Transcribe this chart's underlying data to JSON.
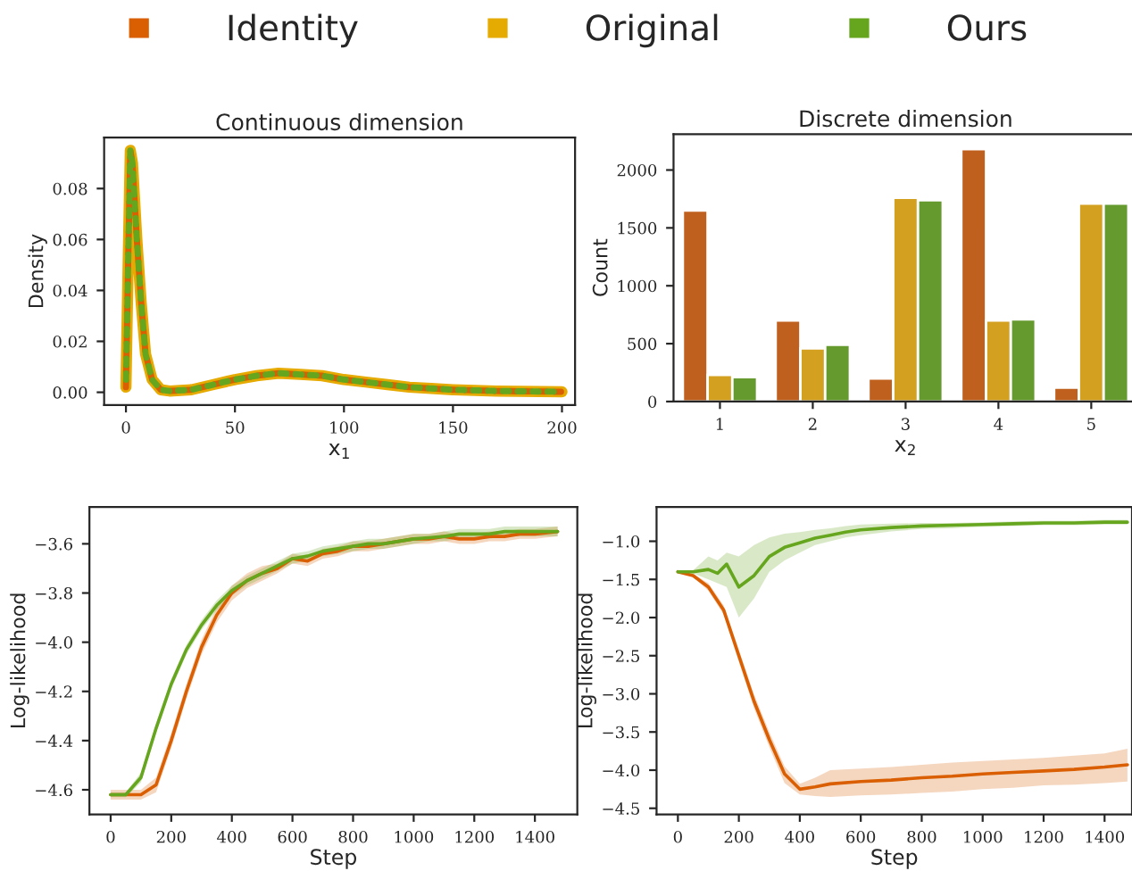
{
  "chart_data": [
    {
      "type": "line",
      "title": "Continuous dimension",
      "xlabel": "x$_{1}$",
      "ylabel": "Density",
      "legend": "top",
      "grid": false,
      "x": [
        0,
        1,
        2,
        3,
        5,
        7,
        9,
        12,
        16,
        20,
        30,
        40,
        50,
        60,
        70,
        80,
        90,
        100,
        110,
        120,
        130,
        140,
        150,
        170,
        200
      ],
      "xlim": [
        -10,
        206
      ],
      "ylim": [
        -0.005,
        0.1
      ],
      "xticks": [
        0,
        50,
        100,
        150,
        200
      ],
      "yticks": [
        {
          "value": 0,
          "label": "0.00"
        },
        {
          "value": 0.02,
          "label": "0.02"
        },
        {
          "value": 0.04,
          "label": "0.04"
        },
        {
          "value": 0.06,
          "label": "0.06"
        },
        {
          "value": 0.08,
          "label": "0.08"
        }
      ],
      "series": [
        {
          "name": "Identity",
          "color": "#d95f02",
          "line_style": "dashed",
          "values": [
            0.002,
            0.05,
            0.095,
            0.09,
            0.06,
            0.035,
            0.015,
            0.005,
            0.001,
            0.0005,
            0.001,
            0.003,
            0.005,
            0.0065,
            0.0075,
            0.007,
            0.0065,
            0.005,
            0.004,
            0.003,
            0.002,
            0.0015,
            0.001,
            0.0005,
            0.0002
          ]
        },
        {
          "name": "Original",
          "color": "#e6ab02",
          "line_style": "solid",
          "values": [
            0.002,
            0.05,
            0.095,
            0.09,
            0.06,
            0.035,
            0.015,
            0.005,
            0.001,
            0.0005,
            0.001,
            0.003,
            0.005,
            0.0065,
            0.0075,
            0.007,
            0.0065,
            0.005,
            0.004,
            0.003,
            0.002,
            0.0015,
            0.001,
            0.0005,
            0.0002
          ]
        },
        {
          "name": "Ours",
          "color": "#66a61e",
          "line_style": "dashed",
          "values": [
            0.002,
            0.05,
            0.095,
            0.09,
            0.06,
            0.035,
            0.015,
            0.005,
            0.001,
            0.0005,
            0.001,
            0.003,
            0.005,
            0.0065,
            0.0075,
            0.007,
            0.0065,
            0.005,
            0.004,
            0.003,
            0.002,
            0.0015,
            0.001,
            0.0005,
            0.0002
          ]
        }
      ]
    },
    {
      "type": "bar",
      "title": "Discrete dimension",
      "xlabel": "x$_{2}$",
      "ylabel": "Count",
      "grid": false,
      "categories": [
        "1",
        "2",
        "3",
        "4",
        "5"
      ],
      "ylim": [
        0,
        2310
      ],
      "yticks": [
        0,
        500,
        1000,
        1500,
        2000
      ],
      "series": [
        {
          "color": "#c0601f",
          "values": [
            1650,
            700,
            200,
            2180,
            120
          ]
        },
        {
          "color": "#d4a020",
          "values": [
            230,
            460,
            1760,
            700,
            1710
          ]
        },
        {
          "color": "#659a2e",
          "values": [
            210,
            490,
            1740,
            710,
            1710
          ]
        }
      ]
    },
    {
      "type": "line",
      "xlabel": "Step",
      "ylabel": "Log-likelihood",
      "grid": false,
      "x": [
        0,
        50,
        100,
        150,
        200,
        250,
        300,
        350,
        400,
        450,
        500,
        550,
        600,
        650,
        700,
        750,
        800,
        850,
        900,
        950,
        1000,
        1050,
        1100,
        1150,
        1200,
        1250,
        1300,
        1350,
        1400,
        1475
      ],
      "xlim": [
        -70,
        1540
      ],
      "ylim": [
        -4.7,
        -3.45
      ],
      "xticks": [
        0,
        200,
        400,
        600,
        800,
        1000,
        1200,
        1400
      ],
      "yticks": [
        {
          "value": -4.6,
          "label": "−4.6"
        },
        {
          "value": -4.4,
          "label": "−4.4"
        },
        {
          "value": -4.2,
          "label": "−4.2"
        },
        {
          "value": -4.0,
          "label": "−4.0"
        },
        {
          "value": -3.8,
          "label": "−3.8"
        },
        {
          "value": -3.6,
          "label": "−3.6"
        }
      ],
      "series": [
        {
          "color": "#d95f02",
          "values": [
            -4.62,
            -4.62,
            -4.62,
            -4.58,
            -4.4,
            -4.2,
            -4.02,
            -3.89,
            -3.8,
            -3.75,
            -3.72,
            -3.7,
            -3.66,
            -3.67,
            -3.64,
            -3.63,
            -3.61,
            -3.61,
            -3.6,
            -3.59,
            -3.58,
            -3.58,
            -3.57,
            -3.58,
            -3.58,
            -3.57,
            -3.57,
            -3.56,
            -3.56,
            -3.55
          ],
          "lower": [
            -4.64,
            -4.64,
            -4.64,
            -4.61,
            -4.43,
            -4.23,
            -4.05,
            -3.92,
            -3.83,
            -3.78,
            -3.75,
            -3.72,
            -3.68,
            -3.69,
            -3.66,
            -3.65,
            -3.63,
            -3.63,
            -3.62,
            -3.61,
            -3.6,
            -3.6,
            -3.59,
            -3.6,
            -3.6,
            -3.59,
            -3.59,
            -3.58,
            -3.58,
            -3.57
          ],
          "upper": [
            -4.6,
            -4.6,
            -4.6,
            -4.55,
            -4.37,
            -4.17,
            -3.99,
            -3.86,
            -3.77,
            -3.72,
            -3.69,
            -3.68,
            -3.64,
            -3.65,
            -3.62,
            -3.61,
            -3.59,
            -3.59,
            -3.58,
            -3.57,
            -3.56,
            -3.56,
            -3.55,
            -3.56,
            -3.56,
            -3.55,
            -3.55,
            -3.54,
            -3.54,
            -3.53
          ]
        },
        {
          "color": "#66a61e",
          "values": [
            -4.62,
            -4.62,
            -4.55,
            -4.35,
            -4.17,
            -4.03,
            -3.93,
            -3.85,
            -3.79,
            -3.75,
            -3.72,
            -3.69,
            -3.66,
            -3.65,
            -3.63,
            -3.62,
            -3.61,
            -3.6,
            -3.6,
            -3.59,
            -3.58,
            -3.575,
            -3.57,
            -3.56,
            -3.56,
            -3.56,
            -3.55,
            -3.55,
            -3.55,
            -3.55
          ],
          "lower": [
            -4.63,
            -4.63,
            -4.57,
            -4.37,
            -4.19,
            -4.05,
            -3.95,
            -3.87,
            -3.81,
            -3.77,
            -3.74,
            -3.71,
            -3.68,
            -3.67,
            -3.65,
            -3.64,
            -3.63,
            -3.62,
            -3.62,
            -3.61,
            -3.6,
            -3.59,
            -3.59,
            -3.58,
            -3.58,
            -3.58,
            -3.57,
            -3.57,
            -3.57,
            -3.57
          ],
          "upper": [
            -4.61,
            -4.61,
            -4.53,
            -4.33,
            -4.15,
            -4.01,
            -3.91,
            -3.83,
            -3.77,
            -3.73,
            -3.7,
            -3.67,
            -3.64,
            -3.63,
            -3.61,
            -3.6,
            -3.59,
            -3.58,
            -3.58,
            -3.57,
            -3.56,
            -3.56,
            -3.55,
            -3.54,
            -3.54,
            -3.54,
            -3.53,
            -3.53,
            -3.53,
            -3.53
          ]
        }
      ]
    },
    {
      "type": "line",
      "xlabel": "Step",
      "ylabel": "Log-likelihood",
      "grid": false,
      "xlim": [
        -70,
        1490
      ],
      "ylim": [
        -4.58,
        -0.55
      ],
      "xticks": [
        0,
        200,
        400,
        600,
        800,
        1000,
        1200,
        1400
      ],
      "yticks": [
        {
          "value": -4.5,
          "label": "−4.5"
        },
        {
          "value": -4.0,
          "label": "−4.0"
        },
        {
          "value": -3.5,
          "label": "−3.5"
        },
        {
          "value": -3.0,
          "label": "−3.0"
        },
        {
          "value": -2.5,
          "label": "−2.5"
        },
        {
          "value": -2.0,
          "label": "−2.0"
        },
        {
          "value": -1.5,
          "label": "−1.5"
        },
        {
          "value": -1.0,
          "label": "−1.0"
        }
      ],
      "series": [
        {
          "color": "#d95f02",
          "x": [
            0,
            50,
            100,
            150,
            200,
            250,
            300,
            350,
            400,
            450,
            500,
            600,
            700,
            800,
            900,
            1000,
            1100,
            1200,
            1300,
            1400,
            1475
          ],
          "values": [
            -1.4,
            -1.45,
            -1.6,
            -1.9,
            -2.5,
            -3.1,
            -3.6,
            -4.05,
            -4.25,
            -4.22,
            -4.18,
            -4.15,
            -4.13,
            -4.1,
            -4.08,
            -4.05,
            -4.03,
            -4.01,
            -3.99,
            -3.96,
            -3.93
          ],
          "lower": [
            -1.4,
            -1.47,
            -1.65,
            -1.96,
            -2.58,
            -3.19,
            -3.7,
            -4.17,
            -4.32,
            -4.34,
            -4.35,
            -4.33,
            -4.32,
            -4.3,
            -4.28,
            -4.25,
            -4.23,
            -4.2,
            -4.19,
            -4.17,
            -4.15
          ],
          "upper": [
            -1.4,
            -1.43,
            -1.55,
            -1.84,
            -2.42,
            -3.01,
            -3.5,
            -3.95,
            -4.18,
            -4.1,
            -4.0,
            -3.98,
            -3.96,
            -3.93,
            -3.9,
            -3.88,
            -3.86,
            -3.84,
            -3.81,
            -3.78,
            -3.72
          ]
        },
        {
          "color": "#66a61e",
          "x": [
            0,
            50,
            100,
            130,
            160,
            200,
            250,
            300,
            350,
            400,
            450,
            500,
            550,
            600,
            700,
            800,
            900,
            1000,
            1100,
            1200,
            1300,
            1400,
            1475
          ],
          "values": [
            -1.4,
            -1.4,
            -1.37,
            -1.42,
            -1.3,
            -1.6,
            -1.45,
            -1.2,
            -1.08,
            -1.02,
            -0.96,
            -0.92,
            -0.88,
            -0.85,
            -0.82,
            -0.8,
            -0.79,
            -0.78,
            -0.77,
            -0.76,
            -0.76,
            -0.75,
            -0.75
          ],
          "lower": [
            -1.4,
            -1.42,
            -1.5,
            -1.55,
            -1.6,
            -2.0,
            -1.75,
            -1.4,
            -1.25,
            -1.15,
            -1.05,
            -1.0,
            -0.95,
            -0.92,
            -0.87,
            -0.84,
            -0.83,
            -0.81,
            -0.8,
            -0.79,
            -0.79,
            -0.78,
            -0.78
          ],
          "upper": [
            -1.4,
            -1.38,
            -1.2,
            -1.25,
            -1.15,
            -1.2,
            -1.05,
            -0.95,
            -0.9,
            -0.88,
            -0.85,
            -0.83,
            -0.8,
            -0.78,
            -0.77,
            -0.76,
            -0.76,
            -0.75,
            -0.74,
            -0.73,
            -0.73,
            -0.72,
            -0.72
          ]
        }
      ]
    }
  ]
}
